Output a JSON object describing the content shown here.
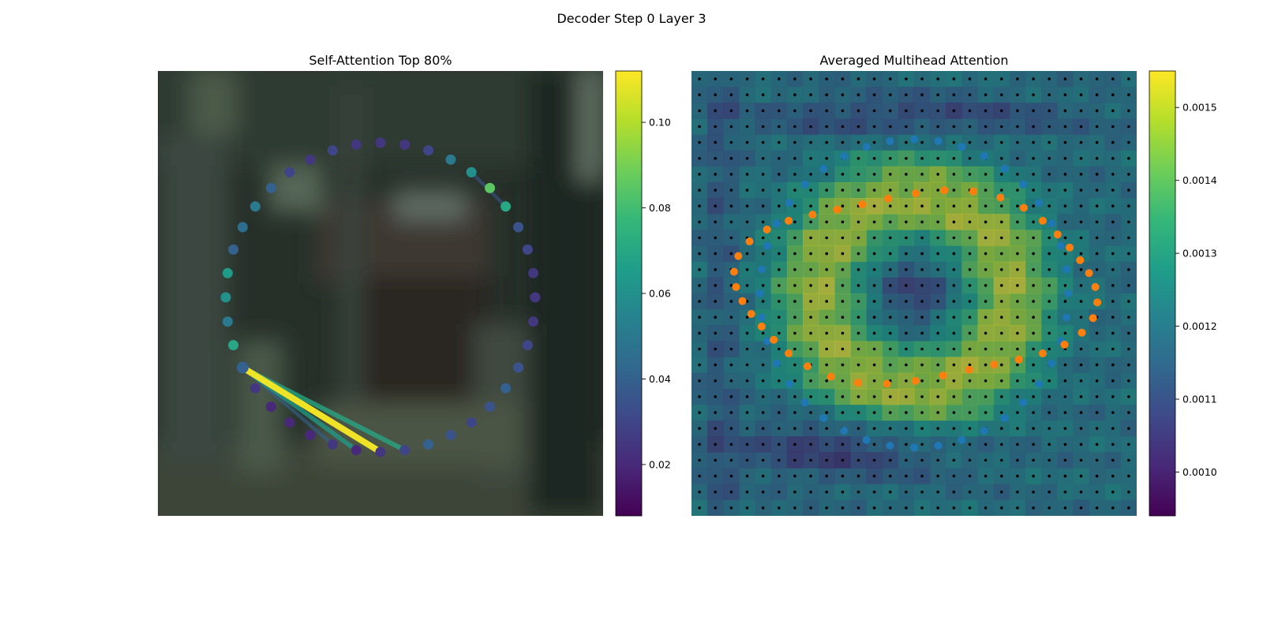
{
  "figure": {
    "title": "Decoder Step 0 Layer 3"
  },
  "panels": {
    "left": {
      "title": "Self-Attention Top 80%"
    },
    "right": {
      "title": "Averaged Multihead Attention"
    }
  },
  "colors": {
    "viridis": [
      "#440154",
      "#482878",
      "#3e4989",
      "#31688e",
      "#26828e",
      "#1f9e89",
      "#35b779",
      "#6ece58",
      "#b5de2b",
      "#fde725"
    ],
    "blue_points": "#1f77b4",
    "orange_points": "#ff7f0e",
    "grid_dots": "#000000"
  },
  "chart_data": [
    {
      "type": "scatter",
      "title": "Self-Attention Top 80%",
      "background": "blurred photo of a garden scene",
      "points": {
        "count": 40,
        "center": [
          282,
          287
        ],
        "radius": 196,
        "start_angle_deg": -90,
        "direction": "clockwise",
        "attention_weights": [
          0.025,
          0.025,
          0.03,
          0.05,
          0.06,
          0.085,
          0.07,
          0.035,
          0.03,
          0.025,
          0.025,
          0.025,
          0.03,
          0.035,
          0.04,
          0.035,
          0.03,
          0.035,
          0.04,
          0.03,
          0.025,
          0.02,
          0.025,
          0.02,
          0.02,
          0.02,
          0.025,
          0.04,
          0.07,
          0.05,
          0.06,
          0.065,
          0.04,
          0.045,
          0.05,
          0.04,
          0.03,
          0.025,
          0.03,
          0.025
        ]
      },
      "edges": [
        {
          "from": 27,
          "to": 20,
          "weight": 0.11
        },
        {
          "from": 27,
          "to": 19,
          "weight": 0.07
        },
        {
          "from": 27,
          "to": 21,
          "weight": 0.065
        },
        {
          "from": 27,
          "to": 22,
          "weight": 0.04
        },
        {
          "from": 6,
          "to": 4,
          "weight": 0.035
        }
      ],
      "colorbar": {
        "min": 0.008,
        "max": 0.112,
        "ticks": [
          0.02,
          0.04,
          0.06,
          0.08,
          0.1
        ],
        "tick_labels": [
          "0.02",
          "0.04",
          "0.06",
          "0.08",
          "0.10"
        ]
      }
    },
    {
      "type": "heatmap",
      "title": "Averaged Multihead Attention",
      "grid": {
        "rows": 28,
        "cols": 28,
        "min": 0.00094,
        "max": 0.00155
      },
      "blue_points": {
        "count": 40,
        "center": [
          14,
          14
        ],
        "radius": 9.7,
        "start_angle_deg": -90,
        "direction": "clockwise"
      },
      "orange_points": {
        "count": 40,
        "center": [
          14.1,
          13.6
        ],
        "radius_x": 11.3,
        "radius_y": 5.9,
        "start_angle_deg": -90,
        "direction": "clockwise",
        "wave_amplitude": 0.45,
        "wave_frequency": 4
      },
      "colorbar": {
        "min": 0.00094,
        "max": 0.00155,
        "ticks": [
          0.001,
          0.0011,
          0.0012,
          0.0013,
          0.0014,
          0.0015
        ],
        "tick_labels": [
          "0.0010",
          "0.0011",
          "0.0012",
          "0.0013",
          "0.0014",
          "0.0015"
        ]
      }
    }
  ]
}
